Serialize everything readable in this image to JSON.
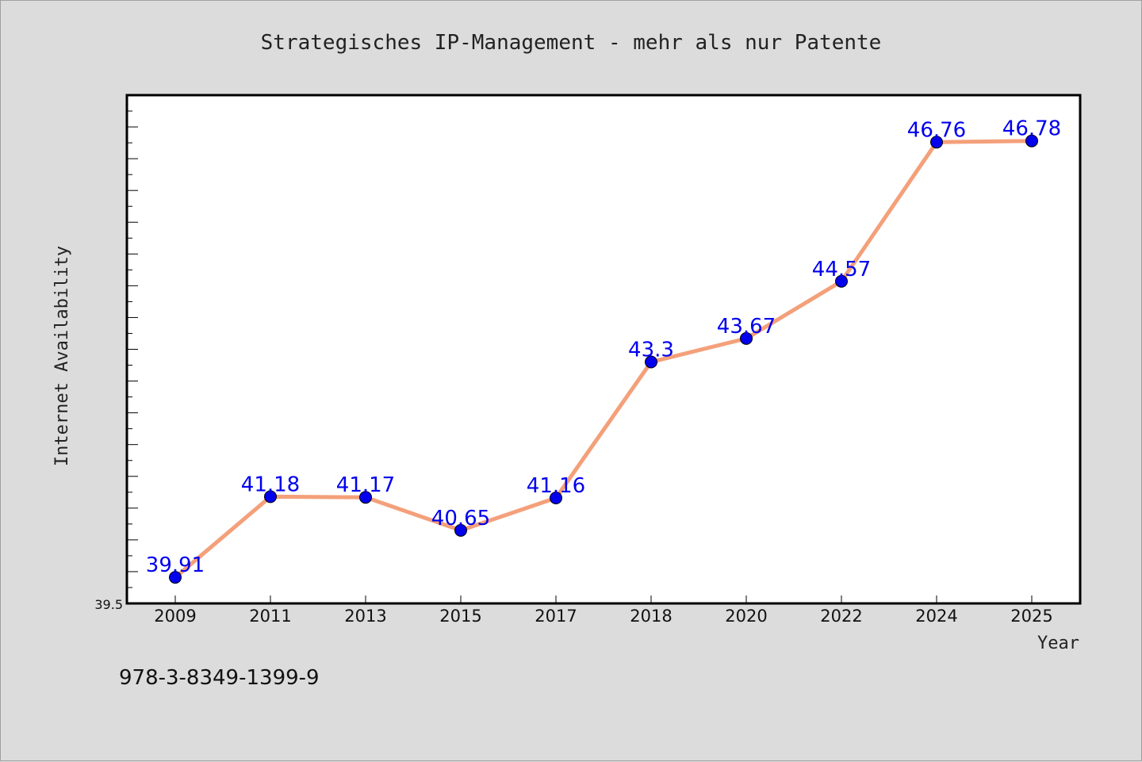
{
  "colors": {
    "background": "#dcdcdc",
    "plot_background": "#ffffff",
    "line": "#f4a07a",
    "marker": "#0000ee",
    "data_label": "#0000ee"
  },
  "footer": {
    "isbn": "978-3-8349-1399-9"
  },
  "chart_data": {
    "type": "line",
    "title": "Strategisches IP-Management - mehr als nur Patente",
    "xlabel": "Year",
    "ylabel": "Internet Availability",
    "categories": [
      "2009",
      "2011",
      "2013",
      "2015",
      "2017",
      "2018",
      "2020",
      "2022",
      "2024",
      "2025"
    ],
    "series": [
      {
        "values": [
          39.91,
          41.18,
          41.17,
          40.65,
          41.16,
          43.3,
          43.67,
          44.57,
          46.76,
          46.78
        ]
      }
    ],
    "data_labels": [
      "39.91",
      "41.18",
      "41.17",
      "40.65",
      "41.16",
      "43.3",
      "43.67",
      "44.57",
      "46.76",
      "46.78"
    ],
    "ytick_labels": [
      "39.5"
    ],
    "ylim": [
      39.5,
      47.5
    ],
    "grid": false,
    "legend": "none"
  }
}
